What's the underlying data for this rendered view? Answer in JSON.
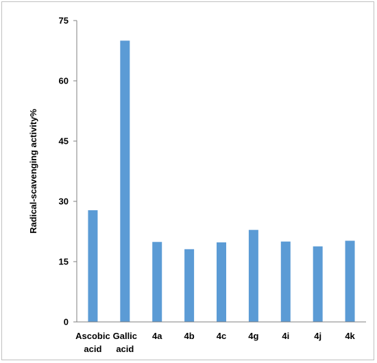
{
  "chart_data": {
    "type": "bar",
    "categories": [
      [
        "Ascobic",
        "acid"
      ],
      [
        "Gallic",
        "acid"
      ],
      [
        "4a"
      ],
      [
        "4b"
      ],
      [
        "4c"
      ],
      [
        "4g"
      ],
      [
        "4i"
      ],
      [
        "4j"
      ],
      [
        "4k"
      ]
    ],
    "values": [
      27.8,
      70.0,
      19.9,
      18.1,
      19.8,
      22.9,
      20.0,
      18.8,
      20.2
    ],
    "ylabel": "Radical-scavenging activity%",
    "xlabel": "",
    "ylim": [
      0,
      75
    ],
    "yticks": [
      0,
      15,
      30,
      45,
      60,
      75
    ],
    "bar_color": "#5b9bd5",
    "axis_color": "#7f7f7f",
    "grid": false,
    "legend": "none"
  }
}
